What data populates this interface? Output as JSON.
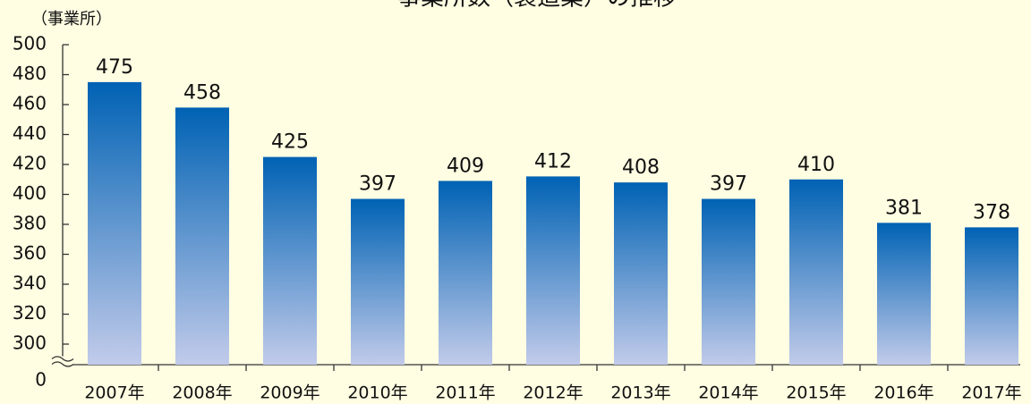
{
  "chart_data": {
    "type": "bar",
    "title": "事業所数（製造業）の推移",
    "y_label": "（事業所）",
    "categories": [
      "2007年",
      "2008年",
      "2009年",
      "2010年",
      "2011年",
      "2012年",
      "2013年",
      "2014年",
      "2015年",
      "2016年",
      "2017年"
    ],
    "values": [
      475,
      458,
      425,
      397,
      409,
      412,
      408,
      397,
      410,
      381,
      378
    ],
    "color": "#0062b4",
    "ylim": [
      0,
      500
    ],
    "yticks": [
      0,
      300,
      320,
      340,
      360,
      380,
      400,
      420,
      440,
      460,
      480,
      500
    ],
    "axis_break": [
      0,
      300
    ],
    "grid": false
  }
}
